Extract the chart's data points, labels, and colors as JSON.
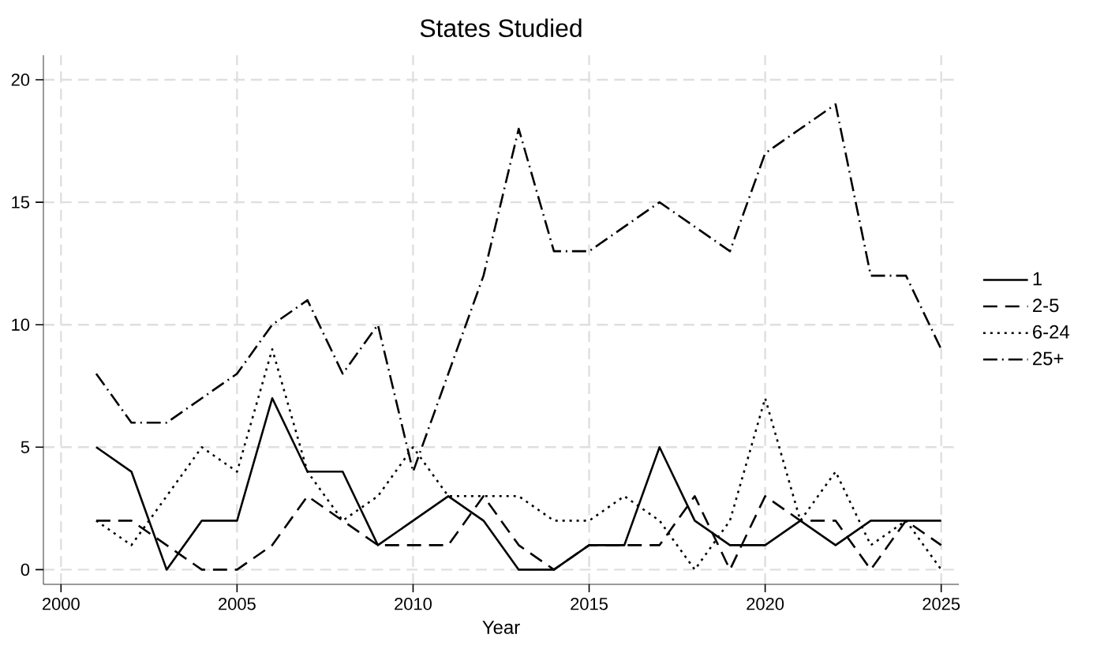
{
  "chart_data": {
    "type": "line",
    "title": "States Studied",
    "xlabel": "Year",
    "x": [
      2001,
      2002,
      2003,
      2004,
      2005,
      2006,
      2007,
      2008,
      2009,
      2010,
      2011,
      2012,
      2013,
      2014,
      2015,
      2016,
      2017,
      2018,
      2019,
      2020,
      2021,
      2022,
      2023,
      2024,
      2025
    ],
    "series": [
      {
        "name": "1",
        "color": "#000000",
        "line_style": "solid",
        "values": [
          5,
          4,
          0,
          2,
          2,
          7,
          4,
          4,
          1,
          2,
          3,
          2,
          0,
          0,
          1,
          1,
          5,
          2,
          1,
          1,
          2,
          1,
          2,
          2,
          2
        ]
      },
      {
        "name": "2-5",
        "color": "#000000",
        "line_style": "dashed",
        "values": [
          2,
          2,
          1,
          0,
          0,
          1,
          3,
          2,
          1,
          1,
          1,
          3,
          1,
          0,
          1,
          1,
          1,
          3,
          0,
          3,
          2,
          2,
          0,
          2,
          1
        ]
      },
      {
        "name": "6-24",
        "color": "#000000",
        "line_style": "dotted",
        "values": [
          2,
          1,
          3,
          5,
          4,
          9,
          4,
          2,
          3,
          5,
          3,
          3,
          3,
          2,
          2,
          3,
          2,
          0,
          2,
          7,
          2,
          4,
          1,
          2,
          0
        ]
      },
      {
        "name": "25+",
        "color": "#000000",
        "line_style": "dashdotted",
        "values": [
          8,
          6,
          6,
          7,
          8,
          10,
          11,
          8,
          10,
          4,
          8,
          12,
          18,
          13,
          13,
          14,
          15,
          14,
          13,
          17,
          18,
          19,
          12,
          12,
          9
        ]
      }
    ],
    "xlim": [
      1999.5,
      2025.5
    ],
    "ylim": [
      -0.6,
      21
    ],
    "xticks": [
      2000,
      2005,
      2010,
      2015,
      2020,
      2025
    ],
    "yticks": [
      0,
      5,
      10,
      15,
      20
    ],
    "grid": true,
    "legend": "right",
    "marker": "none"
  }
}
